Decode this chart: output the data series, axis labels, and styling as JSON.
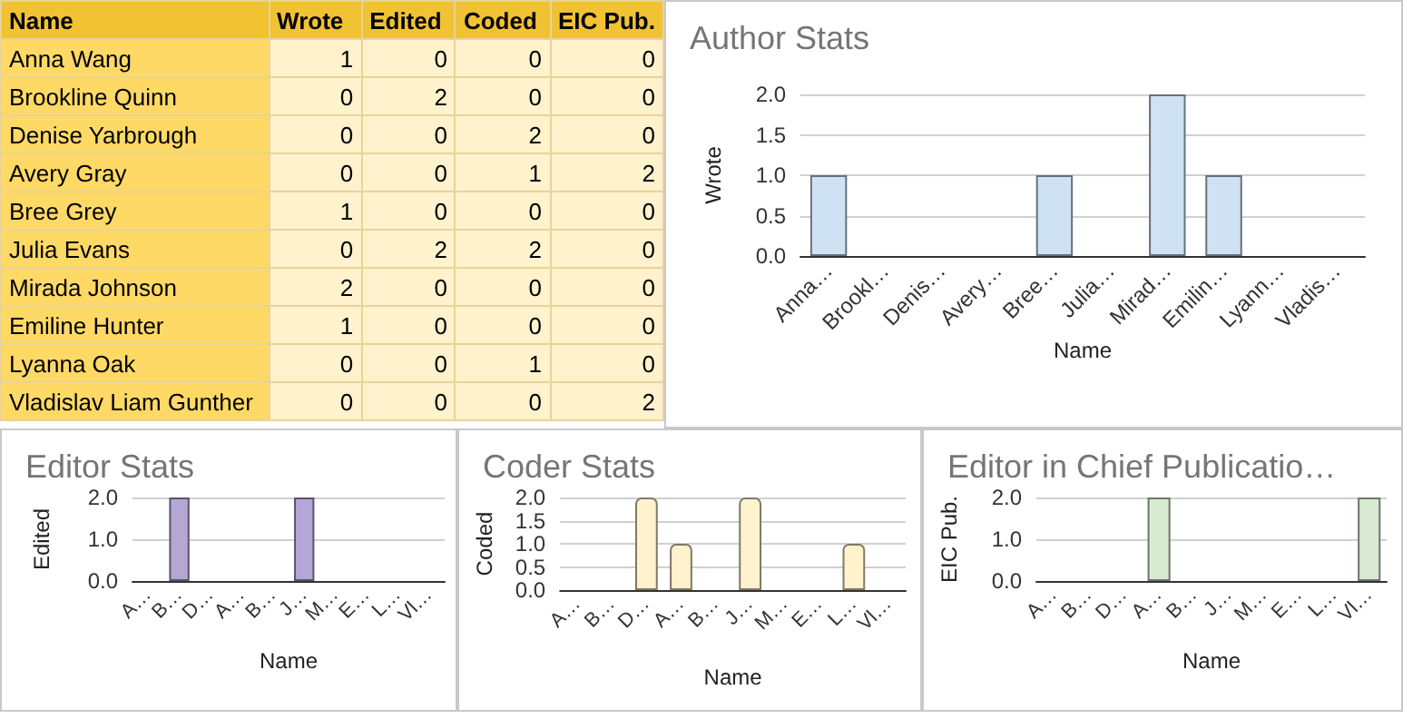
{
  "chart_data": [
    {
      "type": "other",
      "xlabel": "Name",
      "categories": [
        "Anna Wang",
        "Brookline Quinn",
        "Denise Yarbrough",
        "Avery Gray",
        "Bree Grey",
        "Julia Evans",
        "Mirada Johnson",
        "Emiline Hunter",
        "Lyanna Oak",
        "Vladislav Liam Gunther"
      ],
      "data_labels": true,
      "series": [
        {
          "name": "Wrote",
          "values": [
            1,
            0,
            0,
            0,
            1,
            0,
            2,
            1,
            0,
            0
          ]
        },
        {
          "name": "Edited",
          "values": [
            0,
            2,
            0,
            0,
            0,
            2,
            0,
            0,
            0,
            0
          ]
        },
        {
          "name": "Coded",
          "values": [
            0,
            0,
            2,
            1,
            0,
            2,
            0,
            0,
            1,
            0
          ]
        },
        {
          "name": "EIC Pub.",
          "values": [
            0,
            0,
            0,
            2,
            0,
            0,
            0,
            0,
            0,
            2
          ]
        }
      ]
    },
    {
      "type": "bar",
      "title": "Author Stats",
      "xlabel": "Name",
      "ylabel": "Wrote",
      "categories": [
        "Anna…",
        "Brookl…",
        "Denis…",
        "Avery…",
        "Bree…",
        "Julia…",
        "Mirad…",
        "Emilin…",
        "Lyann…",
        "Vladis…"
      ],
      "values": [
        1,
        0,
        0,
        0,
        1,
        0,
        2,
        1,
        0,
        0
      ],
      "color": "#cfe2f3",
      "ylim": [
        0,
        2
      ],
      "yticks": [
        {
          "value": 0,
          "label": "0.0"
        },
        {
          "value": 0.5,
          "label": "0.5"
        },
        {
          "value": 1,
          "label": "1.0"
        },
        {
          "value": 1.5,
          "label": "1.5"
        },
        {
          "value": 2,
          "label": "2.0"
        }
      ],
      "grid": "y"
    },
    {
      "type": "bar",
      "title": "Editor Stats",
      "xlabel": "Name",
      "ylabel": "Edited",
      "categories": [
        "A…",
        "B…",
        "D…",
        "A…",
        "B…",
        "J…",
        "M…",
        "E…",
        "L…",
        "Vl…"
      ],
      "values": [
        0,
        2,
        0,
        0,
        0,
        2,
        0,
        0,
        0,
        0
      ],
      "color": "#b4a7d6",
      "ylim": [
        0,
        2
      ],
      "yticks": [
        {
          "value": 0,
          "label": "0.0"
        },
        {
          "value": 1,
          "label": "1.0"
        },
        {
          "value": 2,
          "label": "2.0"
        }
      ],
      "grid": "y"
    },
    {
      "type": "bar",
      "title": "Coder Stats",
      "xlabel": "Name",
      "ylabel": "Coded",
      "categories": [
        "A…",
        "B…",
        "D…",
        "A…",
        "B…",
        "J…",
        "M…",
        "E…",
        "L…",
        "Vl…"
      ],
      "values": [
        0,
        0,
        2,
        1,
        0,
        2,
        0,
        0,
        1,
        0
      ],
      "color": "#fff2cc",
      "ylim": [
        0,
        2
      ],
      "yticks": [
        {
          "value": 0,
          "label": "0.0"
        },
        {
          "value": 0.5,
          "label": "0.5"
        },
        {
          "value": 1,
          "label": "1.0"
        },
        {
          "value": 1.5,
          "label": "1.5"
        },
        {
          "value": 2,
          "label": "2.0"
        }
      ],
      "grid": "y"
    },
    {
      "type": "bar",
      "title": "Editor in Chief Publicatio…",
      "xlabel": "Name",
      "ylabel": "EIC Pub.",
      "categories": [
        "A…",
        "B…",
        "D…",
        "A…",
        "B…",
        "J…",
        "M…",
        "E…",
        "L…",
        "Vl…"
      ],
      "values": [
        0,
        0,
        0,
        2,
        0,
        0,
        0,
        0,
        0,
        2
      ],
      "color": "#d9ead3",
      "ylim": [
        0,
        2
      ],
      "yticks": [
        {
          "value": 0,
          "label": "0.0"
        },
        {
          "value": 1,
          "label": "1.0"
        },
        {
          "value": 2,
          "label": "2.0"
        }
      ],
      "grid": "y"
    }
  ]
}
